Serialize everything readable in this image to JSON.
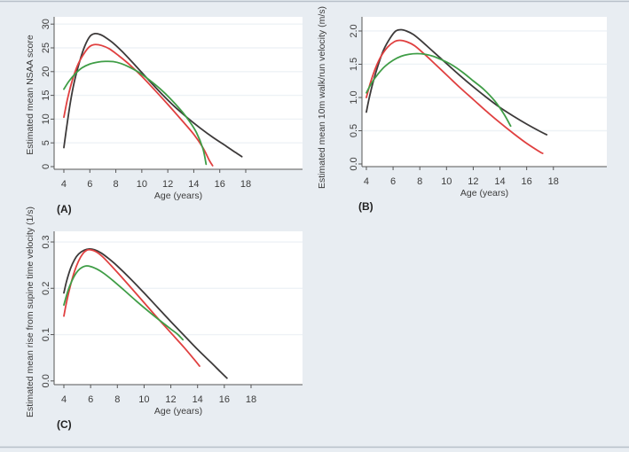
{
  "figure": {
    "background": "#e8edf2",
    "rule_color": "#b7c0c9",
    "plot_background": "#ffffff",
    "grid_color": "#eef2f6",
    "axis_color": "#565656",
    "series_colors": {
      "black": "#3d3a3a",
      "red": "#e04040",
      "green": "#3f9d46"
    }
  },
  "chart_data": [
    {
      "id": "A",
      "type": "line",
      "panel_label": "(A)",
      "xlabel": "Age (years)",
      "ylabel": "Estimated mean NSAA score",
      "xlim": [
        3.25,
        22.37
      ],
      "ylim": [
        -0.56,
        31.53
      ],
      "xticks": [
        4,
        6,
        8,
        10,
        12,
        14,
        16,
        18
      ],
      "xtick_labels": [
        "4",
        "6",
        "8",
        "10",
        "12",
        "14",
        "16",
        "18"
      ],
      "yticks": [
        0,
        5,
        10,
        15,
        20,
        25,
        30
      ],
      "ytick_labels": [
        "0",
        "5",
        "10",
        "15",
        "20",
        "25",
        "30"
      ],
      "grid": true,
      "legend": "none",
      "series": [
        {
          "name": "black",
          "color": "#3d3a3a",
          "points": [
            [
              4,
              4
            ],
            [
              4.2,
              8
            ],
            [
              4.5,
              13.5
            ],
            [
              4.8,
              17.8
            ],
            [
              5.2,
              22
            ],
            [
              5.6,
              25.3
            ],
            [
              6,
              27.4
            ],
            [
              6.4,
              28
            ],
            [
              6.8,
              27.8
            ],
            [
              7.2,
              27.2
            ],
            [
              7.8,
              26
            ],
            [
              8.5,
              24.2
            ],
            [
              9.5,
              21.3
            ],
            [
              10.5,
              18.3
            ],
            [
              11.5,
              15.4
            ],
            [
              12.5,
              12.7
            ],
            [
              13.5,
              10.3
            ],
            [
              14.5,
              8.1
            ],
            [
              15.5,
              6.1
            ],
            [
              16.5,
              4.3
            ],
            [
              17.2,
              3
            ],
            [
              17.7,
              2.1
            ]
          ]
        },
        {
          "name": "red",
          "color": "#e04040",
          "points": [
            [
              4,
              10.4
            ],
            [
              4.3,
              14.5
            ],
            [
              4.7,
              18.6
            ],
            [
              5.1,
              21.6
            ],
            [
              5.6,
              24
            ],
            [
              6,
              25.3
            ],
            [
              6.4,
              25.7
            ],
            [
              6.9,
              25.5
            ],
            [
              7.5,
              24.8
            ],
            [
              8.2,
              23.4
            ],
            [
              9,
              21.6
            ],
            [
              10,
              19
            ],
            [
              11,
              16.1
            ],
            [
              12,
              13.1
            ],
            [
              13,
              10
            ],
            [
              14,
              6.8
            ],
            [
              14.7,
              4
            ],
            [
              15.2,
              1.3
            ],
            [
              15.45,
              0.2
            ]
          ]
        },
        {
          "name": "green",
          "color": "#3f9d46",
          "points": [
            [
              4,
              16.3
            ],
            [
              4.4,
              18
            ],
            [
              4.9,
              19.6
            ],
            [
              5.4,
              20.8
            ],
            [
              6,
              21.6
            ],
            [
              6.6,
              22
            ],
            [
              7.2,
              22.15
            ],
            [
              7.8,
              22.1
            ],
            [
              8.4,
              21.7
            ],
            [
              9,
              21
            ],
            [
              9.8,
              19.8
            ],
            [
              10.6,
              18.2
            ],
            [
              11.4,
              16.4
            ],
            [
              12.2,
              14.3
            ],
            [
              13,
              11.9
            ],
            [
              13.6,
              9.8
            ],
            [
              14.2,
              7.2
            ],
            [
              14.7,
              3.8
            ],
            [
              14.95,
              0.5
            ]
          ]
        }
      ]
    },
    {
      "id": "B",
      "type": "line",
      "panel_label": "(B)",
      "xlabel": "Age (years)",
      "ylabel": "Estimated mean 10m walk/run velocity (m/s)",
      "xlim": [
        3.67,
        22.0
      ],
      "ylim": [
        -0.04,
        2.213
      ],
      "xticks": [
        4,
        6,
        8,
        10,
        12,
        14,
        16,
        18
      ],
      "xtick_labels": [
        "4",
        "6",
        "8",
        "10",
        "12",
        "14",
        "16",
        "18"
      ],
      "yticks": [
        0,
        0.5,
        1.0,
        1.5,
        2.0
      ],
      "ytick_labels": [
        "0.0",
        "0.5",
        "1.0",
        "1.5",
        "2.0"
      ],
      "grid": true,
      "legend": "none",
      "series": [
        {
          "name": "black",
          "color": "#3d3a3a",
          "points": [
            [
              4,
              0.78
            ],
            [
              4.2,
              0.98
            ],
            [
              4.5,
              1.23
            ],
            [
              4.9,
              1.5
            ],
            [
              5.3,
              1.72
            ],
            [
              5.8,
              1.9
            ],
            [
              6.2,
              2.0
            ],
            [
              6.6,
              2.02
            ],
            [
              7,
              2.0
            ],
            [
              7.5,
              1.95
            ],
            [
              8,
              1.87
            ],
            [
              9,
              1.69
            ],
            [
              10,
              1.51
            ],
            [
              11,
              1.33
            ],
            [
              12,
              1.16
            ],
            [
              13,
              1.0
            ],
            [
              14,
              0.85
            ],
            [
              15,
              0.72
            ],
            [
              16,
              0.6
            ],
            [
              17,
              0.49
            ],
            [
              17.5,
              0.44
            ]
          ]
        },
        {
          "name": "red",
          "color": "#e04040",
          "points": [
            [
              4,
              1.0
            ],
            [
              4.3,
              1.22
            ],
            [
              4.7,
              1.45
            ],
            [
              5.1,
              1.62
            ],
            [
              5.6,
              1.76
            ],
            [
              6.1,
              1.84
            ],
            [
              6.5,
              1.86
            ],
            [
              7,
              1.84
            ],
            [
              7.6,
              1.78
            ],
            [
              8.3,
              1.66
            ],
            [
              9,
              1.53
            ],
            [
              10,
              1.34
            ],
            [
              11,
              1.15
            ],
            [
              12,
              0.97
            ],
            [
              13,
              0.79
            ],
            [
              14,
              0.62
            ],
            [
              15,
              0.46
            ],
            [
              16,
              0.31
            ],
            [
              17,
              0.18
            ],
            [
              17.2,
              0.16
            ]
          ]
        },
        {
          "name": "green",
          "color": "#3f9d46",
          "points": [
            [
              4,
              1.07
            ],
            [
              4.4,
              1.22
            ],
            [
              4.9,
              1.36
            ],
            [
              5.4,
              1.47
            ],
            [
              6,
              1.56
            ],
            [
              6.6,
              1.62
            ],
            [
              7.2,
              1.65
            ],
            [
              7.8,
              1.66
            ],
            [
              8.4,
              1.65
            ],
            [
              9,
              1.62
            ],
            [
              9.6,
              1.57
            ],
            [
              10.4,
              1.49
            ],
            [
              11.2,
              1.38
            ],
            [
              12,
              1.25
            ],
            [
              12.8,
              1.12
            ],
            [
              13.6,
              0.95
            ],
            [
              14.3,
              0.75
            ],
            [
              14.8,
              0.57
            ]
          ]
        }
      ]
    },
    {
      "id": "C",
      "type": "line",
      "panel_label": "(C)",
      "xlabel": "Age (years)",
      "ylabel": "Estimated mean rise from supine time velocity (1/s)",
      "xlim": [
        3.27,
        21.85
      ],
      "ylim": [
        -0.008,
        0.323
      ],
      "xticks": [
        4,
        6,
        8,
        10,
        12,
        14,
        16,
        18
      ],
      "xtick_labels": [
        "4",
        "6",
        "8",
        "10",
        "12",
        "14",
        "16",
        "18"
      ],
      "yticks": [
        0,
        0.1,
        0.2,
        0.3
      ],
      "ytick_labels": [
        "0.0",
        "0.1",
        "0.2",
        "0.3"
      ],
      "grid": true,
      "legend": "none",
      "series": [
        {
          "name": "black",
          "color": "#3d3a3a",
          "points": [
            [
              4,
              0.19
            ],
            [
              4.2,
              0.215
            ],
            [
              4.5,
              0.243
            ],
            [
              4.8,
              0.262
            ],
            [
              5.1,
              0.274
            ],
            [
              5.5,
              0.282
            ],
            [
              5.9,
              0.285
            ],
            [
              6.3,
              0.283
            ],
            [
              6.8,
              0.276
            ],
            [
              7.4,
              0.263
            ],
            [
              8,
              0.248
            ],
            [
              9,
              0.22
            ],
            [
              10,
              0.19
            ],
            [
              11,
              0.159
            ],
            [
              12,
              0.128
            ],
            [
              13,
              0.098
            ],
            [
              14,
              0.068
            ],
            [
              15,
              0.04
            ],
            [
              15.7,
              0.02
            ],
            [
              16.2,
              0.006
            ]
          ]
        },
        {
          "name": "red",
          "color": "#e04040",
          "points": [
            [
              4,
              0.14
            ],
            [
              4.2,
              0.17
            ],
            [
              4.5,
              0.207
            ],
            [
              4.8,
              0.237
            ],
            [
              5.1,
              0.259
            ],
            [
              5.4,
              0.274
            ],
            [
              5.7,
              0.282
            ],
            [
              6,
              0.283
            ],
            [
              6.4,
              0.279
            ],
            [
              6.9,
              0.268
            ],
            [
              7.5,
              0.25
            ],
            [
              8.2,
              0.228
            ],
            [
              9,
              0.202
            ],
            [
              10,
              0.169
            ],
            [
              11,
              0.136
            ],
            [
              12,
              0.104
            ],
            [
              13,
              0.072
            ],
            [
              13.7,
              0.048
            ],
            [
              14.15,
              0.032
            ]
          ]
        },
        {
          "name": "green",
          "color": "#3f9d46",
          "points": [
            [
              4,
              0.164
            ],
            [
              4.3,
              0.194
            ],
            [
              4.6,
              0.216
            ],
            [
              4.9,
              0.232
            ],
            [
              5.2,
              0.242
            ],
            [
              5.6,
              0.248
            ],
            [
              6,
              0.247
            ],
            [
              6.5,
              0.241
            ],
            [
              7,
              0.232
            ],
            [
              7.7,
              0.216
            ],
            [
              8.5,
              0.196
            ],
            [
              9.4,
              0.173
            ],
            [
              10.3,
              0.151
            ],
            [
              11.2,
              0.13
            ],
            [
              12,
              0.112
            ],
            [
              12.5,
              0.101
            ],
            [
              12.9,
              0.089
            ]
          ]
        }
      ]
    }
  ]
}
